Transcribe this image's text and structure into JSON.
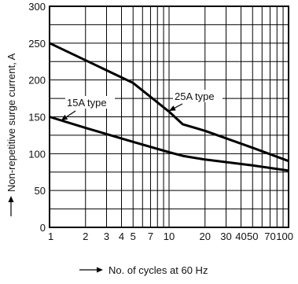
{
  "chart_data": {
    "type": "line",
    "title": "",
    "xlabel": "No. of cycles at 60 Hz",
    "ylabel": "Non-repetitive surge current, A",
    "x_scale": "log",
    "xlim": [
      1,
      100
    ],
    "ylim": [
      0,
      300
    ],
    "x_ticks": [
      1,
      2,
      3,
      4,
      5,
      7,
      10,
      20,
      30,
      40,
      50,
      70,
      100
    ],
    "x_tick_labels": [
      "1",
      "2",
      "3",
      "4",
      "5",
      "7",
      "10",
      "20",
      "30",
      "40",
      "50",
      "70",
      "100"
    ],
    "y_ticks": [
      0,
      50,
      100,
      150,
      200,
      250,
      300
    ],
    "y_tick_labels": [
      "0",
      "50",
      "100",
      "150",
      "200",
      "250",
      "300"
    ],
    "grid": true,
    "series": [
      {
        "name": "25A type",
        "x": [
          1,
          5,
          10,
          13,
          20,
          50,
          100
        ],
        "y": [
          250,
          196,
          157,
          140,
          131,
          108,
          90
        ]
      },
      {
        "name": "15A type",
        "x": [
          1,
          2,
          5,
          10,
          13,
          20,
          50,
          100
        ],
        "y": [
          150,
          135,
          116,
          102,
          97,
          92,
          84,
          77
        ]
      }
    ],
    "annotations": [
      {
        "text": "15A type",
        "series": "15A type",
        "arrow_to": [
          1.25,
          145
        ]
      },
      {
        "text": "25A type",
        "series": "25A type",
        "arrow_to": [
          10,
          158
        ]
      }
    ]
  }
}
